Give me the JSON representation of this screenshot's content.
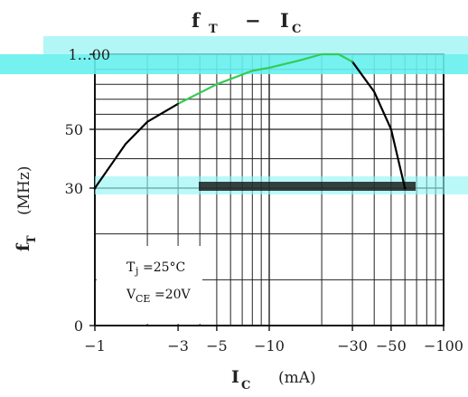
{
  "chart_data": {
    "type": "line",
    "title": {
      "main": "f",
      "main_sub": "T",
      "sep": "−",
      "second": "I",
      "second_sub": "C"
    },
    "xlabel": {
      "main": "I",
      "sub": "C",
      "unit": "(mA)"
    },
    "ylabel": {
      "main": "f",
      "sub": "T",
      "unit": "(MHz)"
    },
    "x_scale": "log",
    "y_scale": "nonlinear",
    "xlim": [
      1,
      100
    ],
    "ylim": [
      0,
      100
    ],
    "x_ticks": [
      {
        "value": 1,
        "label": "−1"
      },
      {
        "value": 3,
        "label": "−3"
      },
      {
        "value": 5,
        "label": "−5"
      },
      {
        "value": 10,
        "label": "−10"
      },
      {
        "value": 30,
        "label": "−30"
      },
      {
        "value": 50,
        "label": "−50"
      },
      {
        "value": 100,
        "label": "−100"
      }
    ],
    "y_ticks": [
      {
        "value": 0,
        "label": "0"
      },
      {
        "value": 30,
        "label": "30"
      },
      {
        "value": 50,
        "label": "50"
      },
      {
        "value": 100,
        "label": "1…00"
      }
    ],
    "grid": true,
    "annotation": {
      "line1_main": "T",
      "line1_sub": "j",
      "line1_rest": "=25°C",
      "line2_main": "V",
      "line2_sub": "CE",
      "line2_rest": "=20V"
    },
    "series": [
      {
        "color_start": "#000000",
        "color_peak": "#33cc55",
        "color_end": "#000000",
        "points": [
          {
            "x": 1,
            "y": 30
          },
          {
            "x": 1.5,
            "y": 45
          },
          {
            "x": 2,
            "y": 55
          },
          {
            "x": 3,
            "y": 67
          },
          {
            "x": 5,
            "y": 80
          },
          {
            "x": 8,
            "y": 89
          },
          {
            "x": 10,
            "y": 91
          },
          {
            "x": 15,
            "y": 96
          },
          {
            "x": 20,
            "y": 100
          },
          {
            "x": 25,
            "y": 100
          },
          {
            "x": 30,
            "y": 95
          },
          {
            "x": 40,
            "y": 75
          },
          {
            "x": 50,
            "y": 50
          },
          {
            "x": 60,
            "y": 30
          }
        ]
      }
    ]
  }
}
